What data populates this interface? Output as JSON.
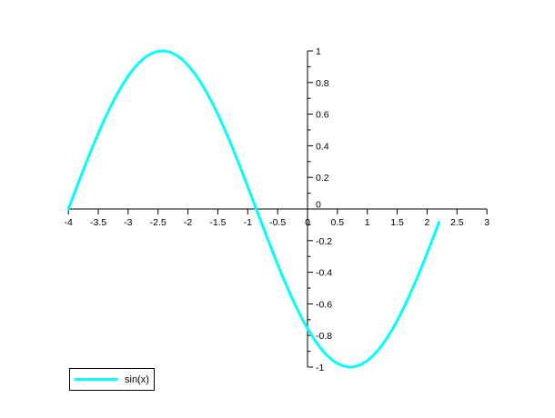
{
  "figure": {
    "background": "#ffffff",
    "axis_color": "#000000",
    "text_color": "#000000"
  },
  "legend": {
    "label": "sin(x)",
    "line_color": "#00ffff"
  },
  "chart_data": {
    "type": "line",
    "title": "",
    "xlabel": "",
    "ylabel": "",
    "xlim": [
      -4,
      3
    ],
    "ylim": [
      -1,
      1
    ],
    "grid": false,
    "axis_style": "cross-at-origin",
    "legend_position": "bottom-left",
    "x_ticks": [
      -4,
      -3.5,
      -3,
      -2.5,
      -2,
      -1.5,
      -1,
      -0.5,
      0,
      0.5,
      1,
      1.5,
      2,
      2.5,
      3
    ],
    "x_tick_labels": [
      "-4",
      "-3.5",
      "-3",
      "-2.5",
      "-2",
      "-1.5",
      "-1",
      "-0.5",
      "0",
      "0.5",
      "1",
      "1.5",
      "2",
      "2.5",
      "3"
    ],
    "y_ticks": [
      -1,
      -0.8,
      -0.6,
      -0.4,
      -0.2,
      0,
      0.2,
      0.4,
      0.6,
      0.8,
      1
    ],
    "y_tick_labels": [
      "-1",
      "-0.8",
      "-0.6",
      "-0.4",
      "-0.2",
      "0",
      "0.2",
      "0.4",
      "0.6",
      "0.8",
      "1"
    ],
    "y_minor_ticks": [
      -0.9,
      -0.7,
      -0.5,
      -0.3,
      -0.1,
      0.1,
      0.3,
      0.5,
      0.7,
      0.9
    ],
    "series": [
      {
        "name": "sin(x)",
        "color": "#00ffff",
        "line_width": 3,
        "x": [
          -4,
          -3.9,
          -3.8,
          -3.7,
          -3.6,
          -3.5,
          -3.4,
          -3.3,
          -3.2,
          -3.1,
          -3,
          -2.9,
          -2.8,
          -2.7,
          -2.6,
          -2.5,
          -2.4,
          -2.3,
          -2.2,
          -2.1,
          -2,
          -1.9,
          -1.8,
          -1.7,
          -1.6,
          -1.5,
          -1.4,
          -1.3,
          -1.2,
          -1.1,
          -1,
          -0.9,
          -0.8,
          -0.7,
          -0.6,
          -0.5,
          -0.4,
          -0.3,
          -0.2,
          -0.1,
          0,
          0.1,
          0.2,
          0.3,
          0.4,
          0.5,
          0.6,
          0.7,
          0.8,
          0.9,
          1,
          1.1,
          1.2,
          1.3,
          1.4,
          1.5,
          1.6,
          1.7,
          1.8,
          1.9,
          2,
          2.1,
          2.2
        ],
        "y": [
          0,
          0.0998,
          0.1987,
          0.2955,
          0.3894,
          0.4794,
          0.5646,
          0.6442,
          0.7174,
          0.7833,
          0.8415,
          0.8912,
          0.932,
          0.9636,
          0.9854,
          0.9975,
          0.9996,
          0.9917,
          0.9738,
          0.9463,
          0.9093,
          0.8632,
          0.8085,
          0.7457,
          0.6755,
          0.5985,
          0.5155,
          0.4274,
          0.335,
          0.2392,
          0.1411,
          0.0416,
          -0.0584,
          -0.1577,
          -0.2555,
          -0.3508,
          -0.4425,
          -0.5298,
          -0.6119,
          -0.6878,
          -0.7568,
          -0.8183,
          -0.8716,
          -0.9162,
          -0.9516,
          -0.9775,
          -0.9937,
          -0.9999,
          -0.9962,
          -0.9825,
          -0.9589,
          -0.9258,
          -0.8835,
          -0.8323,
          -0.7728,
          -0.7055,
          -0.6313,
          -0.5507,
          -0.4646,
          -0.3739,
          -0.2794,
          -0.1822,
          -0.0831
        ]
      }
    ]
  }
}
